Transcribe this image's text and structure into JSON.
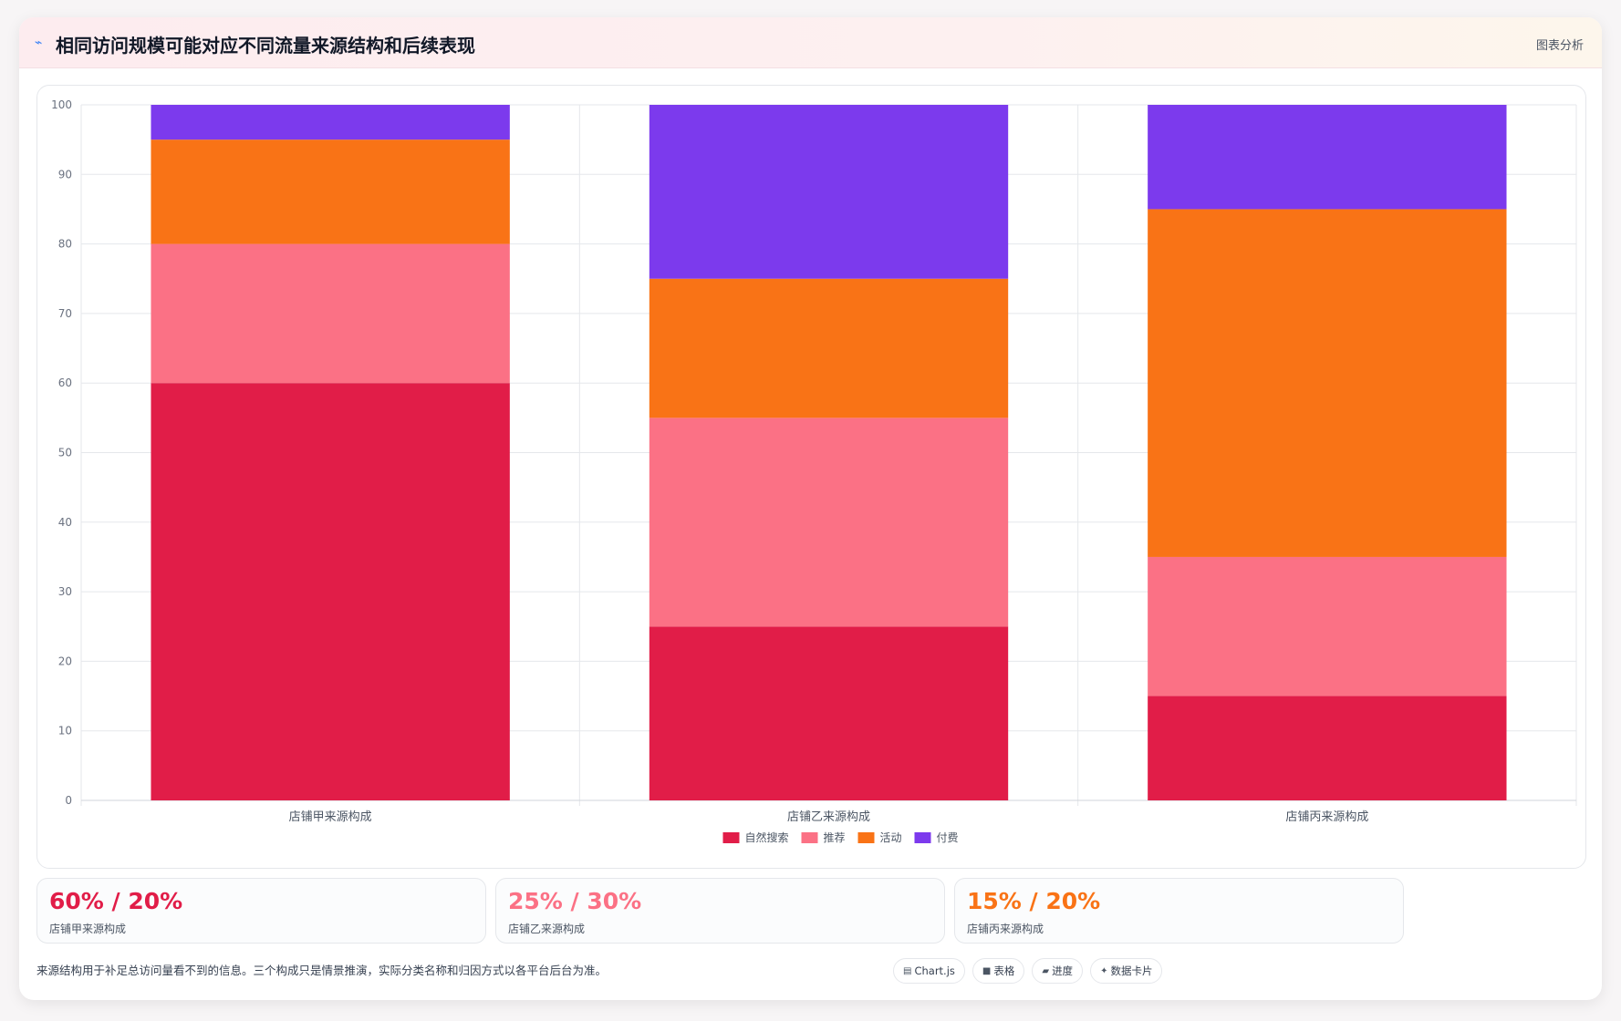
{
  "header": {
    "icon": "trend-icon",
    "title": "相同访问规模可能对应不同流量来源结构和后续表现",
    "tag": "图表分析"
  },
  "chart_data": {
    "type": "bar",
    "stacked": true,
    "categories": [
      "店铺甲来源构成",
      "店铺乙来源构成",
      "店铺丙来源构成"
    ],
    "series": [
      {
        "name": "自然搜索",
        "color": "#e11d48",
        "values": [
          60,
          25,
          15
        ]
      },
      {
        "name": "推荐",
        "color": "#fb7185",
        "values": [
          20,
          30,
          20
        ]
      },
      {
        "name": "活动",
        "color": "#f97316",
        "values": [
          15,
          20,
          50
        ]
      },
      {
        "name": "付费",
        "color": "#7c3aed",
        "values": [
          5,
          25,
          15
        ]
      }
    ],
    "ylim": [
      0,
      100
    ],
    "yticks": [
      0,
      10,
      20,
      30,
      40,
      50,
      60,
      70,
      80,
      90,
      100
    ],
    "grid": true,
    "legend": "bottom"
  },
  "stats": [
    {
      "value": "60% / 20%",
      "label": "店铺甲来源构成",
      "color": "#e11d48"
    },
    {
      "value": "25% / 30%",
      "label": "店铺乙来源构成",
      "color": "#fb7185"
    },
    {
      "value": "15% / 20%",
      "label": "店铺丙来源构成",
      "color": "#f97316"
    }
  ],
  "footnote": "来源结构用于补足总访问量看不到的信息。三个构成只是情景推演，实际分类名称和归因方式以各平台后台为准。",
  "chips": [
    {
      "icon": "chart-icon",
      "label": "Chart.js"
    },
    {
      "icon": "table-icon",
      "label": "表格"
    },
    {
      "icon": "progress-icon",
      "label": "进度"
    },
    {
      "icon": "card-icon",
      "label": "数据卡片"
    }
  ]
}
